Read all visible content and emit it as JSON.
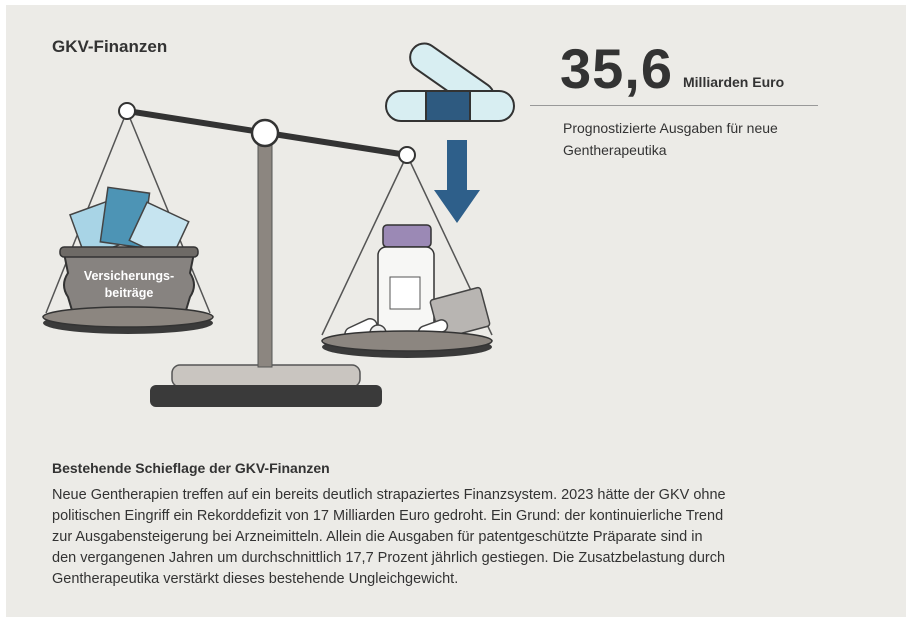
{
  "header": {
    "title": "GKV-Finanzen"
  },
  "stat": {
    "value": "35,6",
    "unit": "Milliarden Euro",
    "description": [
      "Prognostizierte Ausgaben für neue",
      "Gentherapeutika"
    ]
  },
  "illustration": {
    "pot_label": [
      "Versicherungs-",
      "beiträge"
    ]
  },
  "section": {
    "heading": "Bestehende Schieflage der GKV-Finanzen",
    "lines": [
      "Neue Gentherapien treffen auf ein bereits deutlich strapaziertes Finanzsystem. 2023 hätte der GKV ohne",
      "politischen Eingriff ein Rekorddefizit von 17 Milliarden Euro gedroht. Ein Grund: der kontinuierliche Trend",
      "zur Ausgabensteigerung bei Arzneimitteln. Allein die Ausgaben für patentgeschützte Präparate sind in",
      "den vergangenen Jahren um durchschnittlich 17,7 Prozent jährlich gestiegen. Die Zusatzbelastung durch",
      "Gentherapeutika verstärkt dieses bestehende Ungleichgewicht."
    ]
  }
}
